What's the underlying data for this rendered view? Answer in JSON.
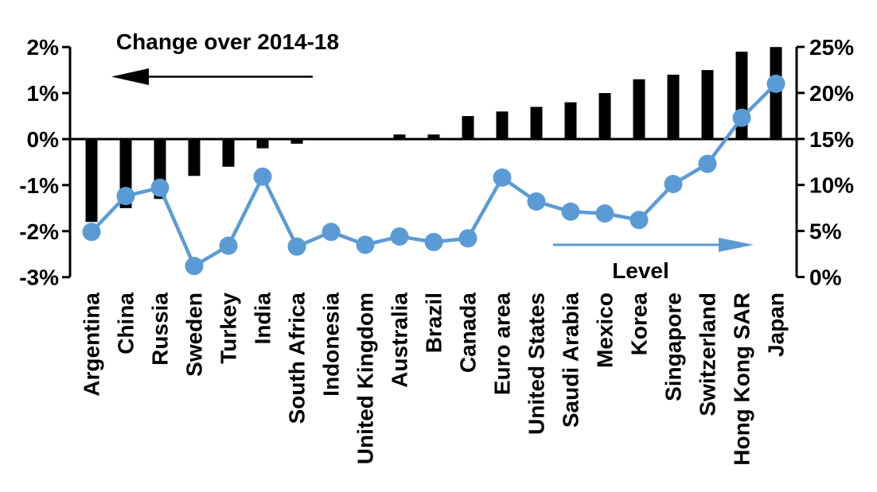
{
  "chart_data": {
    "type": "combo_bar_line",
    "categories": [
      "Argentina",
      "China",
      "Russia",
      "Sweden",
      "Turkey",
      "India",
      "South Africa",
      "Indonesia",
      "United Kingdom",
      "Australia",
      "Brazil",
      "Canada",
      "Euro area",
      "United States",
      "Saudi Arabia",
      "Mexico",
      "Korea",
      "Singapore",
      "Switzerland",
      "Hong Kong SAR",
      "Japan"
    ],
    "series": [
      {
        "name": "Change over 2014-18",
        "type": "bar",
        "axis": "left",
        "color": "#000000",
        "unit": "%",
        "values": [
          -1.8,
          -1.5,
          -1.3,
          -0.8,
          -0.6,
          -0.2,
          -0.1,
          0.0,
          0.0,
          0.1,
          0.1,
          0.5,
          0.6,
          0.7,
          0.8,
          1.0,
          1.3,
          1.4,
          1.5,
          1.9,
          2.0
        ]
      },
      {
        "name": "Level",
        "type": "line",
        "axis": "right",
        "color": "#5B9BD5",
        "unit": "%",
        "values": [
          4.9,
          8.8,
          9.7,
          1.2,
          3.4,
          10.9,
          3.3,
          4.9,
          3.5,
          4.4,
          3.8,
          4.2,
          10.8,
          8.2,
          7.1,
          6.9,
          6.2,
          10.1,
          12.3,
          17.3,
          21.0
        ]
      }
    ],
    "left_axis": {
      "min": -3,
      "max": 2,
      "tick_step": 1,
      "tick_labels": [
        "2%",
        "1%",
        "0%",
        "-1%",
        "-2%",
        "-3%"
      ],
      "unit": "%"
    },
    "right_axis": {
      "min": 0,
      "max": 25,
      "tick_step": 5,
      "tick_labels": [
        "25%",
        "20%",
        "15%",
        "10%",
        "5%",
        "0%"
      ],
      "unit": "%"
    },
    "annotations": {
      "bar_label": "Change over 2014-18",
      "bar_arrow_direction": "left",
      "line_label": "Level",
      "line_arrow_direction": "right"
    },
    "grid": false,
    "colors": {
      "bar": "#000000",
      "line": "#5B9BD5",
      "axis": "#000000",
      "background": "#ffffff"
    }
  }
}
